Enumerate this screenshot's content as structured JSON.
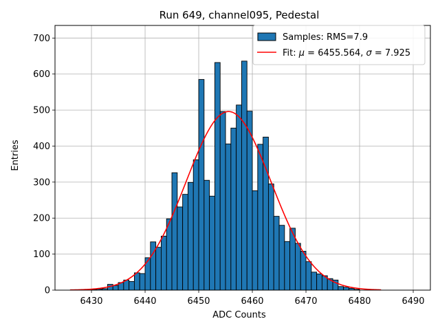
{
  "chart_data": {
    "type": "bar",
    "title": "Run 649, channel095, Pedestal",
    "xlabel": "ADC Counts",
    "ylabel": "Entries",
    "xlim": [
      6423.2,
      6493.2
    ],
    "ylim": [
      0,
      735
    ],
    "xticks": [
      6430,
      6440,
      6450,
      6460,
      6470,
      6480,
      6490
    ],
    "yticks": [
      0,
      100,
      200,
      300,
      400,
      500,
      600,
      700
    ],
    "grid": true,
    "legend_position": "top-right",
    "colors": {
      "bar_fill": "#1f77b4",
      "bar_edge": "#000000",
      "fit_line": "#ff0000",
      "grid": "#b0b0b0"
    },
    "histogram": {
      "name": "Samples: RMS=7.9",
      "bin_edges_start": 6430,
      "bin_width": 1,
      "values": [
        2,
        3,
        4,
        16,
        13,
        21,
        28,
        24,
        48,
        46,
        90,
        134,
        119,
        150,
        198,
        326,
        231,
        266,
        299,
        362,
        585,
        305,
        261,
        632,
        496,
        406,
        450,
        514,
        636,
        497,
        276,
        405,
        425,
        295,
        205,
        180,
        135,
        172,
        130,
        108,
        79,
        50,
        45,
        40,
        32,
        28,
        10,
        8,
        5,
        2
      ]
    },
    "fit": {
      "name": "Fit: μ = 6455.564, σ = 7.925",
      "mu": 6455.564,
      "sigma": 7.925,
      "amplitude": 496,
      "x_range": [
        6426,
        6484
      ]
    }
  },
  "legend": {
    "samples_label": "Samples: RMS=7.9",
    "fit_label_prefix": "Fit: ",
    "fit_mu_symbol": "μ",
    "fit_mu_value": " = 6455.564, ",
    "fit_sigma_symbol": "σ",
    "fit_sigma_value": " = 7.925"
  }
}
